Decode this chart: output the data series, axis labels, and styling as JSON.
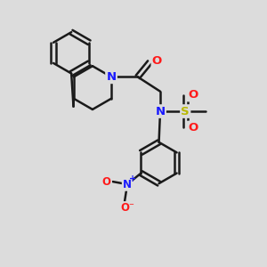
{
  "bg": "#dcdcdc",
  "BC": "#1a1a1a",
  "NC": "#1a1aff",
  "OC": "#ff1a1a",
  "SC": "#b8b800",
  "lw": 1.8,
  "fs": 9.5,
  "figsize": [
    3.0,
    3.0
  ],
  "dpi": 100,
  "xlim": [
    0,
    10
  ],
  "ylim": [
    0,
    10
  ]
}
